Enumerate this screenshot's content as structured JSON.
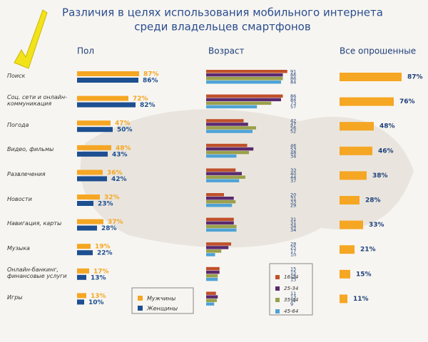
{
  "title": [
    "Различия в целях использования мобильного интернета",
    "среди владельцев смартфонов"
  ],
  "categories": [
    "Поиск",
    "Соц. сети и онлайн-коммуникация",
    "Погода",
    "Видео, фильмы",
    "Развлечения",
    "Новости",
    "Навигация, карты",
    "Музыка",
    "Онлайн-банкинг, финансовые услуги",
    "Игры"
  ],
  "chart_data": [
    {
      "type": "bar",
      "orientation": "horizontal",
      "title": "Пол",
      "series": [
        {
          "name": "Мужчины",
          "color": "#f5a623",
          "values": [
            87,
            72,
            47,
            48,
            36,
            32,
            37,
            19,
            17,
            13
          ],
          "value_labels": [
            "87%",
            "72%",
            "47%",
            "48%",
            "36%",
            "32%",
            "37%",
            "19%",
            "17%",
            "13%"
          ]
        },
        {
          "name": "Женщины",
          "color": "#1d4f91",
          "values": [
            86,
            82,
            50,
            43,
            42,
            23,
            28,
            22,
            13,
            10
          ],
          "value_labels": [
            "86%",
            "82%",
            "50%",
            "43%",
            "42%",
            "23%",
            "28%",
            "22%",
            "13%",
            "10%"
          ]
        }
      ]
    },
    {
      "type": "bar",
      "orientation": "horizontal",
      "title": "Возраст",
      "series": [
        {
          "name": "16-24",
          "color": "#c0502a",
          "values": [
            91,
            86,
            42,
            46,
            33,
            20,
            31,
            28,
            15,
            11
          ]
        },
        {
          "name": "25-34",
          "color": "#5b2a6e",
          "values": [
            86,
            84,
            47,
            53,
            40,
            31,
            31,
            25,
            15,
            13
          ]
        },
        {
          "name": "35-44",
          "color": "#9aa04a",
          "values": [
            86,
            73,
            56,
            48,
            44,
            33,
            34,
            17,
            13,
            12
          ]
        },
        {
          "name": "45-64",
          "color": "#4fa3d6",
          "values": [
            84,
            57,
            52,
            34,
            37,
            29,
            34,
            10,
            13,
            9
          ]
        }
      ]
    },
    {
      "type": "bar",
      "orientation": "horizontal",
      "title": "Все опрошенные",
      "color": "#f5a623",
      "values": [
        87,
        76,
        48,
        46,
        38,
        28,
        33,
        21,
        15,
        11
      ],
      "value_labels": [
        "87%",
        "76%",
        "48%",
        "46%",
        "38%",
        "28%",
        "33%",
        "21%",
        "15%",
        "11%"
      ]
    }
  ]
}
